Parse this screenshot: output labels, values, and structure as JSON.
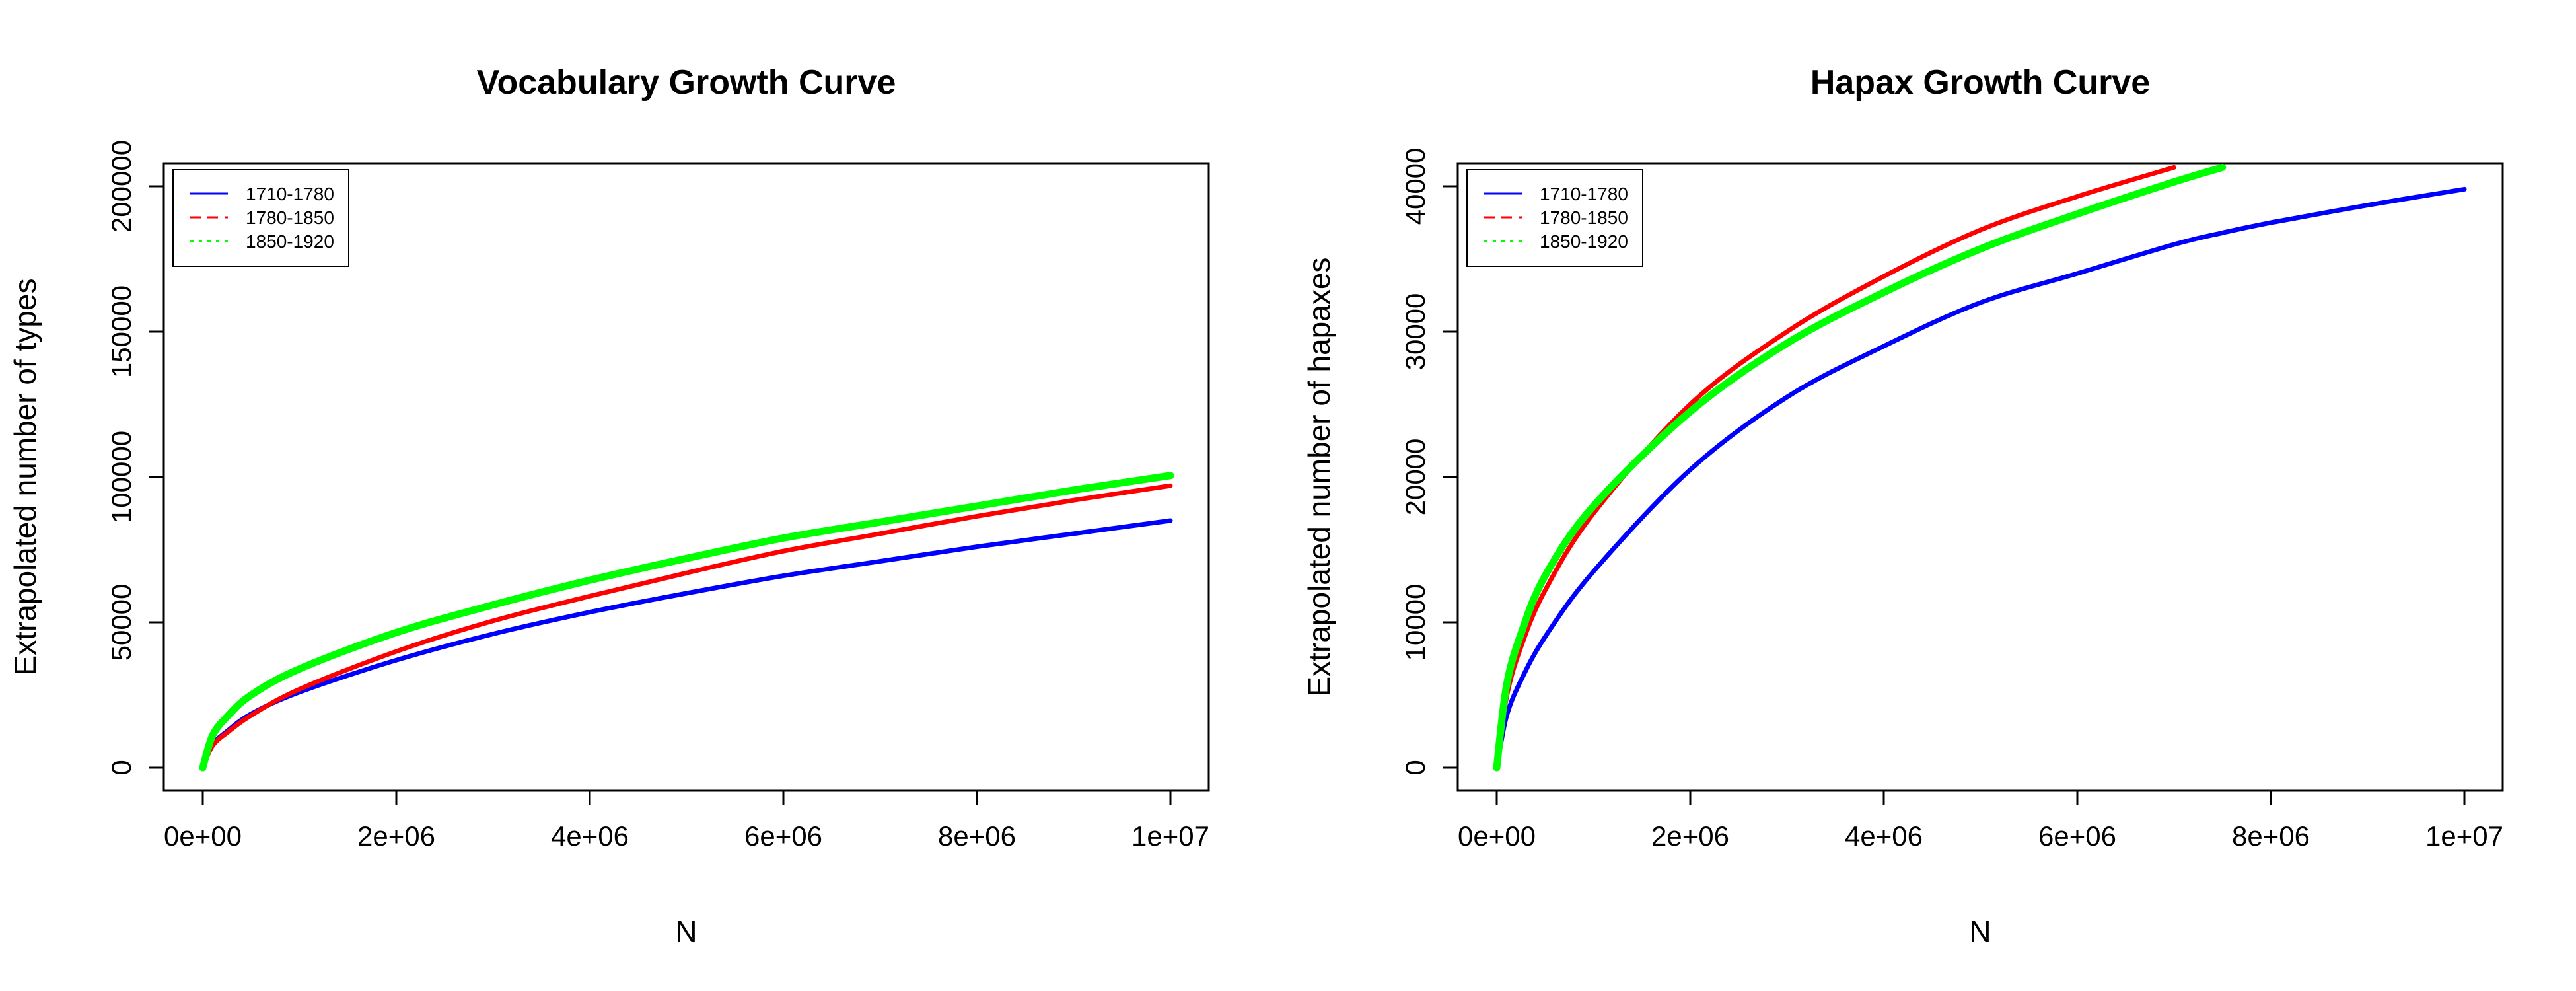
{
  "chart_data": [
    {
      "type": "line",
      "title": "Vocabulary Growth Curve",
      "xlabel": "N",
      "ylabel": "Extrapolated number of types",
      "xlim": [
        0,
        10000000
      ],
      "ylim": [
        0,
        200000
      ],
      "x_ticks": [
        0,
        2000000,
        4000000,
        6000000,
        8000000,
        10000000
      ],
      "x_tick_labels": [
        "0e+00",
        "2e+06",
        "4e+06",
        "6e+06",
        "8e+06",
        "1e+07"
      ],
      "y_ticks": [
        0,
        50000,
        100000,
        150000,
        200000
      ],
      "y_tick_labels": [
        "0",
        "50000",
        "100000",
        "150000",
        "200000"
      ],
      "grid": false,
      "legend": {
        "position": "top-left",
        "entries": [
          {
            "label": "1710-1780",
            "color": "#0000FF",
            "style": "solid"
          },
          {
            "label": "1780-1850",
            "color": "#FF0000",
            "style": "dashed"
          },
          {
            "label": "1850-1920",
            "color": "#00FF00",
            "style": "dotted"
          }
        ]
      },
      "x": [
        0,
        100000,
        250000,
        500000,
        1000000,
        2000000,
        3000000,
        4000000,
        5000000,
        6000000,
        7000000,
        8000000,
        9000000,
        10000000
      ],
      "series": [
        {
          "name": "1710-1780",
          "color": "#0000FF",
          "values": [
            0,
            7800,
            12500,
            18500,
            26000,
            37000,
            46000,
            53500,
            60000,
            66000,
            71000,
            76000,
            80500,
            85000
          ]
        },
        {
          "name": "1780-1850",
          "color": "#FF0000",
          "values": [
            0,
            7500,
            12000,
            18000,
            27000,
            40000,
            50500,
            59000,
            67000,
            74500,
            80500,
            86500,
            92000,
            97000
          ]
        },
        {
          "name": "1850-1920",
          "color": "#00FF00",
          "values": [
            0,
            11000,
            17500,
            25000,
            34000,
            46500,
            56000,
            64500,
            72000,
            79000,
            84500,
            90000,
            95500,
            100500
          ]
        }
      ]
    },
    {
      "type": "line",
      "title": "Hapax Growth Curve",
      "xlabel": "N",
      "ylabel": "Extrapolated number of hapaxes",
      "xlim": [
        0,
        10000000
      ],
      "ylim": [
        0,
        40000
      ],
      "x_ticks": [
        0,
        2000000,
        4000000,
        6000000,
        8000000,
        10000000
      ],
      "x_tick_labels": [
        "0e+00",
        "2e+06",
        "4e+06",
        "6e+06",
        "8e+06",
        "1e+07"
      ],
      "y_ticks": [
        0,
        10000,
        20000,
        30000,
        40000
      ],
      "y_tick_labels": [
        "0",
        "10000",
        "20000",
        "30000",
        "40000"
      ],
      "grid": false,
      "legend": {
        "position": "top-left",
        "entries": [
          {
            "label": "1710-1780",
            "color": "#0000FF",
            "style": "solid"
          },
          {
            "label": "1780-1850",
            "color": "#FF0000",
            "style": "dashed"
          },
          {
            "label": "1850-1920",
            "color": "#00FF00",
            "style": "dotted"
          }
        ]
      },
      "x": [
        0,
        100000,
        250000,
        500000,
        1000000,
        2000000,
        3000000,
        4000000,
        5000000,
        6000000,
        7000000,
        7500000,
        8000000,
        9000000,
        10000000
      ],
      "series": [
        {
          "name": "1710-1780",
          "color": "#0000FF",
          "values": [
            0,
            3500,
            6000,
            9000,
            13500,
            20500,
            25500,
            29000,
            32000,
            34000,
            36000,
            36800,
            37500,
            38700,
            39800
          ]
        },
        {
          "name": "1780-1850",
          "color": "#FF0000",
          "values": [
            0,
            4800,
            8300,
            12200,
            17500,
            25000,
            30000,
            33800,
            37000,
            39300,
            41300,
            null,
            null,
            null,
            null
          ]
        },
        {
          "name": "1850-1920",
          "color": "#00FF00",
          "values": [
            0,
            5600,
            9200,
            13200,
            18000,
            24500,
            29200,
            32700,
            35700,
            38100,
            40300,
            41300,
            null,
            null,
            null
          ]
        }
      ]
    }
  ]
}
